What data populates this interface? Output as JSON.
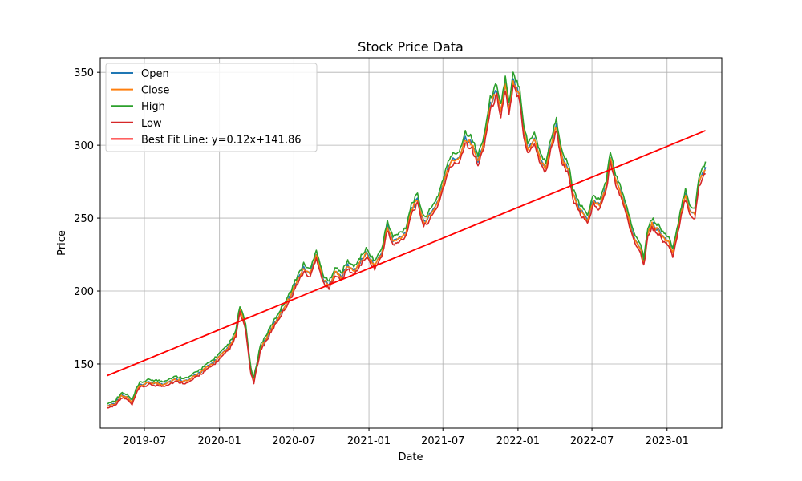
{
  "chart_data": {
    "type": "line",
    "title": "Stock Price Data",
    "xlabel": "Date",
    "ylabel": "Price",
    "grid": true,
    "legend_position": "top-left",
    "x_range": [
      "2019-03-15",
      "2023-05-15"
    ],
    "ylim": [
      106,
      360
    ],
    "x_ticks": [
      "2019-07",
      "2020-01",
      "2020-07",
      "2021-01",
      "2021-07",
      "2022-01",
      "2022-07",
      "2023-01"
    ],
    "y_ticks": [
      150,
      200,
      250,
      300,
      350
    ],
    "series": [
      {
        "name": "Open",
        "color": "#1f77b4"
      },
      {
        "name": "Close",
        "color": "#ff7f0e"
      },
      {
        "name": "High",
        "color": "#2ca02c"
      },
      {
        "name": "Low",
        "color": "#d62728"
      }
    ],
    "low_points": [
      [
        "2019-04-01",
        119
      ],
      [
        "2019-04-20",
        121
      ],
      [
        "2019-05-05",
        126
      ],
      [
        "2019-05-20",
        125
      ],
      [
        "2019-06-01",
        121
      ],
      [
        "2019-06-10",
        128
      ],
      [
        "2019-06-20",
        133
      ],
      [
        "2019-07-15",
        135
      ],
      [
        "2019-08-15",
        134
      ],
      [
        "2019-09-15",
        137
      ],
      [
        "2019-10-15",
        136
      ],
      [
        "2019-11-15",
        142
      ],
      [
        "2019-12-15",
        148
      ],
      [
        "2020-01-15",
        156
      ],
      [
        "2020-02-01",
        162
      ],
      [
        "2020-02-10",
        168
      ],
      [
        "2020-02-20",
        184
      ],
      [
        "2020-03-05",
        172
      ],
      [
        "2020-03-18",
        142
      ],
      [
        "2020-03-25",
        136
      ],
      [
        "2020-04-10",
        158
      ],
      [
        "2020-04-25",
        165
      ],
      [
        "2020-05-15",
        175
      ],
      [
        "2020-06-01",
        183
      ],
      [
        "2020-06-20",
        192
      ],
      [
        "2020-07-10",
        204
      ],
      [
        "2020-07-25",
        212
      ],
      [
        "2020-08-10",
        208
      ],
      [
        "2020-08-25",
        222
      ],
      [
        "2020-09-10",
        205
      ],
      [
        "2020-09-25",
        200
      ],
      [
        "2020-10-10",
        210
      ],
      [
        "2020-10-25",
        206
      ],
      [
        "2020-11-10",
        214
      ],
      [
        "2020-11-25",
        210
      ],
      [
        "2020-12-10",
        216
      ],
      [
        "2020-12-25",
        222
      ],
      [
        "2021-01-15",
        214
      ],
      [
        "2021-02-01",
        222
      ],
      [
        "2021-02-15",
        240
      ],
      [
        "2021-03-01",
        230
      ],
      [
        "2021-03-15",
        232
      ],
      [
        "2021-04-01",
        236
      ],
      [
        "2021-04-15",
        252
      ],
      [
        "2021-04-30",
        258
      ],
      [
        "2021-05-15",
        243
      ],
      [
        "2021-06-01",
        248
      ],
      [
        "2021-06-20",
        258
      ],
      [
        "2021-07-05",
        272
      ],
      [
        "2021-07-20",
        284
      ],
      [
        "2021-08-10",
        287
      ],
      [
        "2021-08-25",
        300
      ],
      [
        "2021-09-10",
        296
      ],
      [
        "2021-09-25",
        284
      ],
      [
        "2021-10-10",
        298
      ],
      [
        "2021-10-25",
        322
      ],
      [
        "2021-11-10",
        332
      ],
      [
        "2021-11-20",
        318
      ],
      [
        "2021-12-01",
        336
      ],
      [
        "2021-12-10",
        318
      ],
      [
        "2021-12-20",
        338
      ],
      [
        "2022-01-05",
        330
      ],
      [
        "2022-01-15",
        305
      ],
      [
        "2022-01-25",
        292
      ],
      [
        "2022-02-10",
        300
      ],
      [
        "2022-02-25",
        285
      ],
      [
        "2022-03-10",
        280
      ],
      [
        "2022-03-25",
        298
      ],
      [
        "2022-04-05",
        308
      ],
      [
        "2022-04-20",
        285
      ],
      [
        "2022-05-05",
        278
      ],
      [
        "2022-05-15",
        262
      ],
      [
        "2022-05-25",
        255
      ],
      [
        "2022-06-10",
        248
      ],
      [
        "2022-06-20",
        245
      ],
      [
        "2022-07-05",
        258
      ],
      [
        "2022-07-20",
        254
      ],
      [
        "2022-08-05",
        268
      ],
      [
        "2022-08-15",
        286
      ],
      [
        "2022-08-28",
        272
      ],
      [
        "2022-09-10",
        262
      ],
      [
        "2022-09-25",
        250
      ],
      [
        "2022-10-05",
        238
      ],
      [
        "2022-10-15",
        232
      ],
      [
        "2022-10-28",
        226
      ],
      [
        "2022-11-05",
        216
      ],
      [
        "2022-11-15",
        236
      ],
      [
        "2022-11-25",
        242
      ],
      [
        "2022-12-10",
        238
      ],
      [
        "2022-12-25",
        232
      ],
      [
        "2023-01-05",
        230
      ],
      [
        "2023-01-15",
        222
      ],
      [
        "2023-01-25",
        234
      ],
      [
        "2023-02-05",
        250
      ],
      [
        "2023-02-15",
        262
      ],
      [
        "2023-02-25",
        252
      ],
      [
        "2023-03-10",
        248
      ],
      [
        "2023-03-20",
        270
      ],
      [
        "2023-03-30",
        276
      ],
      [
        "2023-04-05",
        280
      ]
    ],
    "best_fit": {
      "name": "Best Fit Line: y=0.12x+141.86",
      "color": "#ff0000",
      "start": [
        "2019-04-01",
        142
      ],
      "end": [
        "2023-04-05",
        310
      ]
    }
  }
}
